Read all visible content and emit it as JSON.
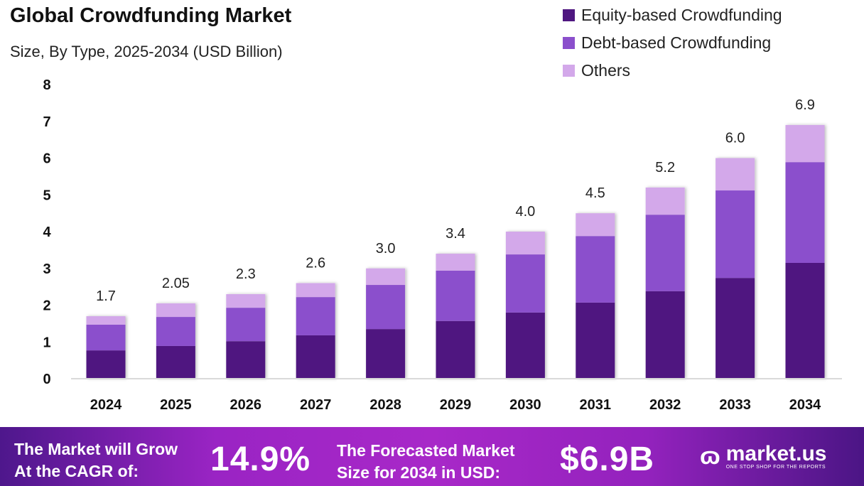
{
  "chart_data": {
    "type": "bar",
    "stacked": true,
    "title": "Global Crowdfunding Market",
    "subtitle": "Size, By Type, 2025-2034 (USD Billion)",
    "xlabel": "",
    "ylabel": "",
    "ylim": [
      0,
      8
    ],
    "yticks": [
      "0",
      "1",
      "2",
      "3",
      "4",
      "5",
      "6",
      "7",
      "8"
    ],
    "categories": [
      "2024",
      "2025",
      "2026",
      "2027",
      "2028",
      "2029",
      "2030",
      "2031",
      "2032",
      "2033",
      "2034"
    ],
    "totals": [
      "1.7",
      "2.05",
      "2.3",
      "2.6",
      "3.0",
      "3.4",
      "4.0",
      "4.5",
      "5.2",
      "6.0",
      "6.9"
    ],
    "series": [
      {
        "name": "Equity-based Crowdfunding",
        "color": "#4f1780",
        "values": [
          0.77,
          0.89,
          1.02,
          1.18,
          1.35,
          1.57,
          1.8,
          2.07,
          2.38,
          2.74,
          3.15
        ]
      },
      {
        "name": "Debt-based Crowdfunding",
        "color": "#8b4fcc",
        "values": [
          0.7,
          0.79,
          0.91,
          1.04,
          1.2,
          1.37,
          1.58,
          1.81,
          2.08,
          2.38,
          2.74
        ]
      },
      {
        "name": "Others",
        "color": "#d3a8ea",
        "values": [
          0.23,
          0.37,
          0.37,
          0.38,
          0.45,
          0.46,
          0.62,
          0.62,
          0.74,
          0.88,
          1.01
        ]
      }
    ],
    "grid": false,
    "legend": "top-right"
  },
  "banner": {
    "cagr_label_1": "The Market will Grow",
    "cagr_label_2": "At the CAGR of:",
    "cagr_value": "14.9%",
    "forecast_label_1": "The Forecasted Market",
    "forecast_label_2": "Size for 2034 in USD:",
    "forecast_value": "$6.9B",
    "logo_name": "market.us",
    "logo_tagline": "ONE STOP SHOP FOR THE REPORTS"
  }
}
